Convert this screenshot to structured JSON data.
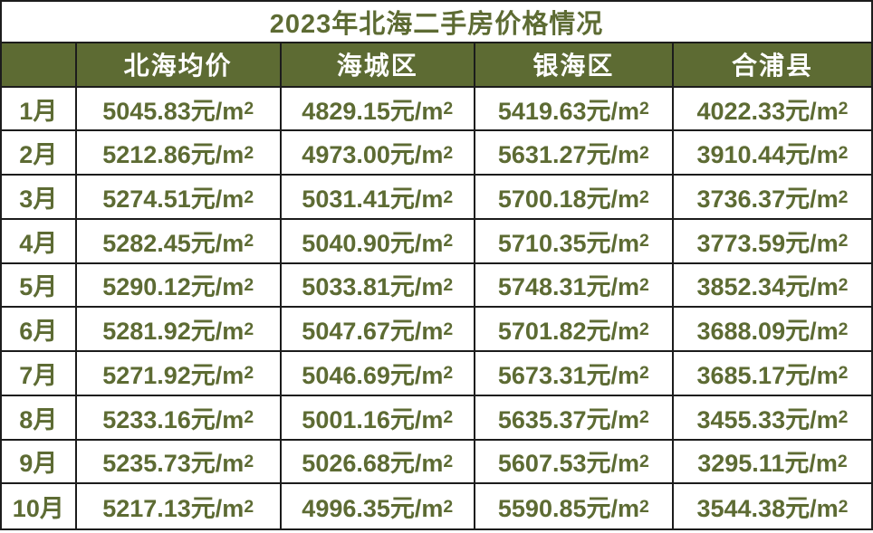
{
  "title": "2023年北海二手房价格情况",
  "colors": {
    "olive": "#5D6B33",
    "grid_line": "#1C1C1C",
    "header_text": "#FFFFFF",
    "cell_bg": "#FFFFFF"
  },
  "chart_data": {
    "type": "table",
    "title": "2023年北海二手房价格情况",
    "columns": [
      "",
      "北海均价",
      "海城区",
      "银海区",
      "合浦县"
    ],
    "unit": "元/m²",
    "row_labels": [
      "1月",
      "2月",
      "3月",
      "4月",
      "5月",
      "6月",
      "7月",
      "8月",
      "9月",
      "10月"
    ],
    "series": [
      {
        "name": "北海均价",
        "values": [
          5045.83,
          5212.86,
          5274.51,
          5282.45,
          5290.12,
          5281.92,
          5271.92,
          5233.16,
          5235.73,
          5217.13
        ]
      },
      {
        "name": "海城区",
        "values": [
          4829.15,
          4973.0,
          5031.41,
          5040.9,
          5033.81,
          5047.67,
          5046.69,
          5001.16,
          5026.68,
          4996.35
        ]
      },
      {
        "name": "银海区",
        "values": [
          5419.63,
          5631.27,
          5700.18,
          5710.35,
          5748.31,
          5701.82,
          5673.31,
          5635.37,
          5607.53,
          5590.85
        ]
      },
      {
        "name": "合浦县",
        "values": [
          4022.33,
          3910.44,
          3736.37,
          3773.59,
          3852.34,
          3688.09,
          3685.17,
          3455.33,
          3295.11,
          3544.38
        ]
      }
    ],
    "layout": {
      "grid": true,
      "header_row": true,
      "title_position": "top-center"
    }
  }
}
